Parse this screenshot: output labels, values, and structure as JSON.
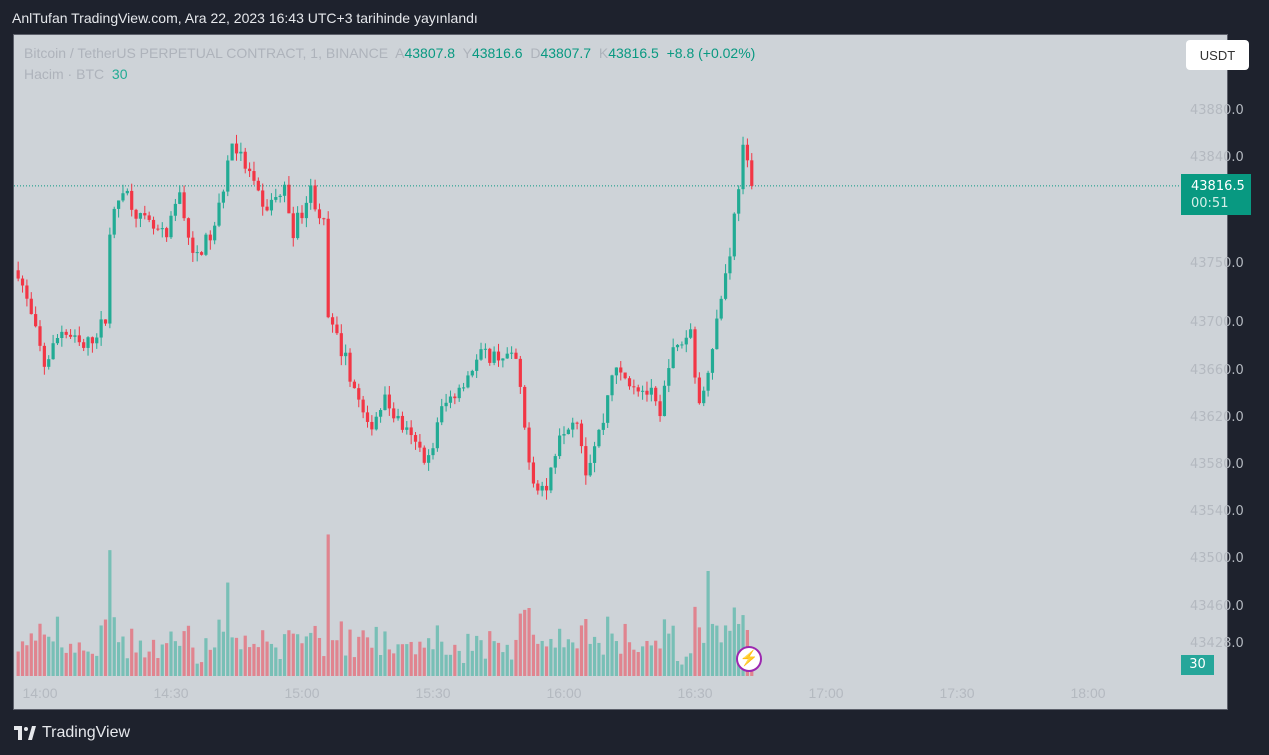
{
  "header": {
    "published": "AnlTufan TradingView.com, Ara 22, 2023 16:43 UTC+3 tarihinde yayınlandı"
  },
  "legend": {
    "symbol": "Bitcoin / TetherUS PERPETUAL CONTRACT, 1, BINANCE",
    "open_label": "A",
    "open": "43807.8",
    "high_label": "Y",
    "high": "43816.6",
    "low_label": "D",
    "low": "43807.7",
    "close_label": "K",
    "close": "43816.5",
    "change": "+8.8 (+0.02%)",
    "volume_label": "Hacim · BTC",
    "volume": "30"
  },
  "currency_button": "USDT",
  "price_axis": [
    "43880.0",
    "43840.0",
    "43750.0",
    "43700.0",
    "43660.0",
    "43620.0",
    "43580.0",
    "43540.0",
    "43500.0",
    "43460.0",
    "43428.0"
  ],
  "last_price": {
    "price": "43816.5",
    "countdown": "00:51"
  },
  "volume_badge": "30",
  "time_axis": [
    "14:00",
    "14:30",
    "15:00",
    "15:30",
    "16:00",
    "16:30",
    "17:00",
    "17:30",
    "18:00"
  ],
  "footer": {
    "brand": "TradingView"
  },
  "colors": {
    "up": "#22ab94",
    "down": "#f23645",
    "background": "#ced3d8"
  },
  "chart_data": {
    "type": "candlestick",
    "interval_minutes": 1,
    "start_time": "13:55",
    "end_time": "16:43",
    "close_keypoints": [
      [
        "13:55",
        43745
      ],
      [
        "14:01",
        43665
      ],
      [
        "14:05",
        43695
      ],
      [
        "14:10",
        43678
      ],
      [
        "14:15",
        43703
      ],
      [
        "14:16",
        43779
      ],
      [
        "14:19",
        43817
      ],
      [
        "14:23",
        43788
      ],
      [
        "14:29",
        43771
      ],
      [
        "14:32",
        43813
      ],
      [
        "14:35",
        43754
      ],
      [
        "14:40",
        43779
      ],
      [
        "14:44",
        43855
      ],
      [
        "14:48",
        43826
      ],
      [
        "14:51",
        43796
      ],
      [
        "14:56",
        43813
      ],
      [
        "14:58",
        43779
      ],
      [
        "15:02",
        43813
      ],
      [
        "15:05",
        43783
      ],
      [
        "15:06",
        43703
      ],
      [
        "15:10",
        43669
      ],
      [
        "15:15",
        43610
      ],
      [
        "15:19",
        43635
      ],
      [
        "15:25",
        43601
      ],
      [
        "15:29",
        43584
      ],
      [
        "15:32",
        43627
      ],
      [
        "15:37",
        43652
      ],
      [
        "15:41",
        43673
      ],
      [
        "15:46",
        43673
      ],
      [
        "15:49",
        43669
      ],
      [
        "15:51",
        43610
      ],
      [
        "15:53",
        43567
      ],
      [
        "15:56",
        43559
      ],
      [
        "15:59",
        43610
      ],
      [
        "16:03",
        43622
      ],
      [
        "16:05",
        43576
      ],
      [
        "16:09",
        43618
      ],
      [
        "16:11",
        43660
      ],
      [
        "16:15",
        43652
      ],
      [
        "16:20",
        43639
      ],
      [
        "16:22",
        43618
      ],
      [
        "16:24",
        43669
      ],
      [
        "16:29",
        43694
      ],
      [
        "16:31",
        43627
      ],
      [
        "16:35",
        43703
      ],
      [
        "16:38",
        43762
      ],
      [
        "16:41",
        43847
      ],
      [
        "16:43",
        43816.5
      ]
    ],
    "volume_axis_max": 30,
    "ylim": [
      43428,
      43900
    ]
  }
}
